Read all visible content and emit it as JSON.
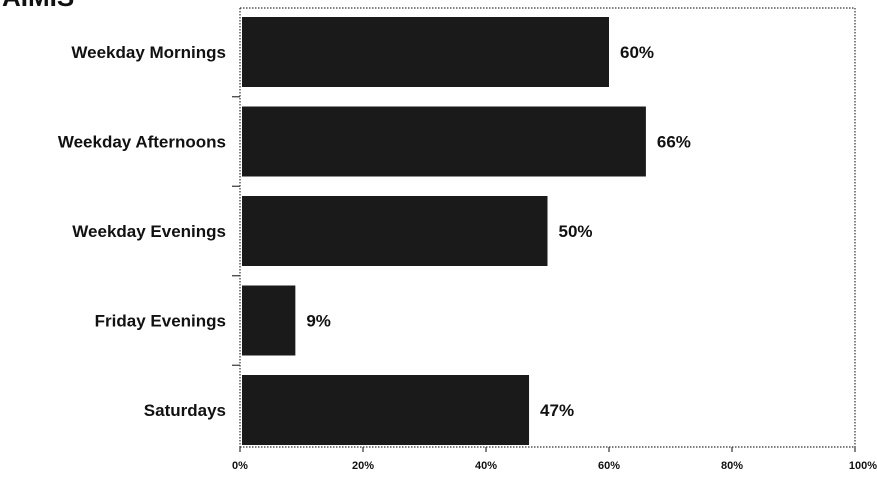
{
  "chart_data": {
    "type": "bar",
    "orientation": "horizontal",
    "title": "",
    "xlabel": "",
    "ylabel": "",
    "categories": [
      "Weekday Mornings",
      "Weekday Afternoons",
      "Weekday Evenings",
      "Friday Evenings",
      "Saturdays"
    ],
    "values": [
      60,
      66,
      50,
      9,
      47
    ],
    "value_labels": [
      "60%",
      "66%",
      "50%",
      "9%",
      "47%"
    ],
    "xlim": [
      0,
      100
    ],
    "xticks": [
      0,
      20,
      40,
      60,
      80,
      100
    ],
    "xtick_labels": [
      "0%",
      "20%",
      "40%",
      "60%",
      "80%",
      "100%"
    ],
    "grid": false,
    "legend": "none",
    "colors": {
      "bar": "#1a1a1a",
      "text": "#111111",
      "frame": "#333333"
    }
  }
}
